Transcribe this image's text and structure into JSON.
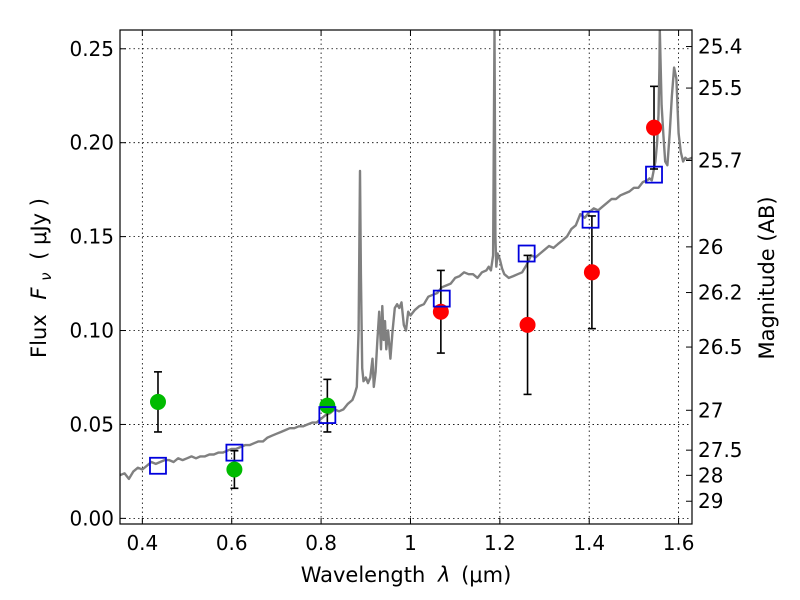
{
  "chart_data": {
    "type": "scatter",
    "xlabel_text": "Wavelength",
    "xlabel_symbol": "λ",
    "xlabel_unit": "(μm)",
    "ylabel_text": "Flux",
    "ylabel_symbol": "F",
    "ylabel_subscript": "ν",
    "ylabel_unit": "( μJy )",
    "y2label": "Magnitude (AB)",
    "xlim": [
      0.35,
      1.63
    ],
    "ylim": [
      -0.003,
      0.26
    ],
    "grid": true,
    "x_ticks": [
      {
        "value": 0.4,
        "label": "0.4"
      },
      {
        "value": 0.6,
        "label": "0.6"
      },
      {
        "value": 0.8,
        "label": "0.8"
      },
      {
        "value": 1.0,
        "label": "1"
      },
      {
        "value": 1.2,
        "label": "1.2"
      },
      {
        "value": 1.4,
        "label": "1.4"
      },
      {
        "value": 1.6,
        "label": "1.6"
      }
    ],
    "y_ticks": [
      {
        "value": 0.0,
        "label": "0.00"
      },
      {
        "value": 0.05,
        "label": "0.05"
      },
      {
        "value": 0.1,
        "label": "0.10"
      },
      {
        "value": 0.15,
        "label": "0.15"
      },
      {
        "value": 0.2,
        "label": "0.20"
      },
      {
        "value": 0.25,
        "label": "0.25"
      }
    ],
    "mag_ticks": [
      {
        "label": "25.4",
        "mag": 25.4
      },
      {
        "label": "25.5",
        "mag": 25.5
      },
      {
        "label": "25.7",
        "mag": 25.7
      },
      {
        "label": "26",
        "mag": 26.0
      },
      {
        "label": "26.2",
        "mag": 26.2
      },
      {
        "label": "26.5",
        "mag": 26.5
      },
      {
        "label": "27",
        "mag": 27.0
      },
      {
        "label": "27.5",
        "mag": 27.5
      },
      {
        "label": "28",
        "mag": 28.0
      },
      {
        "label": "29",
        "mag": 29.0
      }
    ],
    "series": [
      {
        "name": "model spectrum",
        "kind": "line",
        "color": "#808080",
        "points": [
          [
            0.35,
            0.023
          ],
          [
            0.36,
            0.024
          ],
          [
            0.37,
            0.021
          ],
          [
            0.38,
            0.025
          ],
          [
            0.39,
            0.027
          ],
          [
            0.4,
            0.026
          ],
          [
            0.41,
            0.028
          ],
          [
            0.42,
            0.03
          ],
          [
            0.43,
            0.029
          ],
          [
            0.44,
            0.03
          ],
          [
            0.45,
            0.031
          ],
          [
            0.46,
            0.031
          ],
          [
            0.47,
            0.03
          ],
          [
            0.48,
            0.032
          ],
          [
            0.49,
            0.031
          ],
          [
            0.5,
            0.032
          ],
          [
            0.51,
            0.033
          ],
          [
            0.52,
            0.032
          ],
          [
            0.53,
            0.033
          ],
          [
            0.54,
            0.033
          ],
          [
            0.55,
            0.034
          ],
          [
            0.56,
            0.034
          ],
          [
            0.57,
            0.035
          ],
          [
            0.58,
            0.035
          ],
          [
            0.59,
            0.036
          ],
          [
            0.6,
            0.037
          ],
          [
            0.61,
            0.037
          ],
          [
            0.62,
            0.038
          ],
          [
            0.63,
            0.039
          ],
          [
            0.64,
            0.039
          ],
          [
            0.65,
            0.04
          ],
          [
            0.66,
            0.041
          ],
          [
            0.67,
            0.041
          ],
          [
            0.68,
            0.043
          ],
          [
            0.69,
            0.044
          ],
          [
            0.7,
            0.045
          ],
          [
            0.71,
            0.046
          ],
          [
            0.72,
            0.047
          ],
          [
            0.73,
            0.048
          ],
          [
            0.74,
            0.048
          ],
          [
            0.75,
            0.049
          ],
          [
            0.76,
            0.049
          ],
          [
            0.77,
            0.05
          ],
          [
            0.78,
            0.051
          ],
          [
            0.79,
            0.051
          ],
          [
            0.8,
            0.053
          ],
          [
            0.81,
            0.055
          ],
          [
            0.82,
            0.056
          ],
          [
            0.83,
            0.058
          ],
          [
            0.84,
            0.057
          ],
          [
            0.85,
            0.058
          ],
          [
            0.86,
            0.061
          ],
          [
            0.87,
            0.063
          ],
          [
            0.875,
            0.066
          ],
          [
            0.88,
            0.07
          ],
          [
            0.884,
            0.1
          ],
          [
            0.887,
            0.185
          ],
          [
            0.889,
            0.13
          ],
          [
            0.892,
            0.08
          ],
          [
            0.895,
            0.073
          ],
          [
            0.9,
            0.075
          ],
          [
            0.905,
            0.072
          ],
          [
            0.91,
            0.075
          ],
          [
            0.915,
            0.085
          ],
          [
            0.918,
            0.07
          ],
          [
            0.922,
            0.078
          ],
          [
            0.926,
            0.095
          ],
          [
            0.93,
            0.11
          ],
          [
            0.934,
            0.09
          ],
          [
            0.937,
            0.113
          ],
          [
            0.94,
            0.095
          ],
          [
            0.943,
            0.105
          ],
          [
            0.946,
            0.09
          ],
          [
            0.95,
            0.1
          ],
          [
            0.955,
            0.085
          ],
          [
            0.96,
            0.1
          ],
          [
            0.965,
            0.112
          ],
          [
            0.97,
            0.114
          ],
          [
            0.975,
            0.112
          ],
          [
            0.98,
            0.115
          ],
          [
            0.985,
            0.103
          ],
          [
            0.99,
            0.1
          ],
          [
            0.995,
            0.11
          ],
          [
            1.0,
            0.108
          ],
          [
            1.01,
            0.111
          ],
          [
            1.02,
            0.113
          ],
          [
            1.03,
            0.114
          ],
          [
            1.04,
            0.118
          ],
          [
            1.05,
            0.119
          ],
          [
            1.06,
            0.12
          ],
          [
            1.07,
            0.123
          ],
          [
            1.08,
            0.124
          ],
          [
            1.09,
            0.125
          ],
          [
            1.1,
            0.128
          ],
          [
            1.11,
            0.129
          ],
          [
            1.12,
            0.131
          ],
          [
            1.13,
            0.13
          ],
          [
            1.14,
            0.13
          ],
          [
            1.15,
            0.128
          ],
          [
            1.16,
            0.131
          ],
          [
            1.17,
            0.132
          ],
          [
            1.175,
            0.134
          ],
          [
            1.18,
            0.132
          ],
          [
            1.185,
            0.14
          ],
          [
            1.188,
            0.26
          ],
          [
            1.19,
            0.15
          ],
          [
            1.192,
            0.134
          ],
          [
            1.195,
            0.141
          ],
          [
            1.2,
            0.138
          ],
          [
            1.205,
            0.133
          ],
          [
            1.21,
            0.13
          ],
          [
            1.22,
            0.128
          ],
          [
            1.23,
            0.129
          ],
          [
            1.24,
            0.13
          ],
          [
            1.25,
            0.131
          ],
          [
            1.26,
            0.135
          ],
          [
            1.27,
            0.14
          ],
          [
            1.28,
            0.139
          ],
          [
            1.29,
            0.141
          ],
          [
            1.3,
            0.143
          ],
          [
            1.31,
            0.145
          ],
          [
            1.32,
            0.144
          ],
          [
            1.33,
            0.146
          ],
          [
            1.34,
            0.148
          ],
          [
            1.35,
            0.15
          ],
          [
            1.36,
            0.154
          ],
          [
            1.37,
            0.156
          ],
          [
            1.38,
            0.162
          ],
          [
            1.39,
            0.16
          ],
          [
            1.4,
            0.163
          ],
          [
            1.41,
            0.165
          ],
          [
            1.42,
            0.164
          ],
          [
            1.43,
            0.166
          ],
          [
            1.44,
            0.168
          ],
          [
            1.45,
            0.17
          ],
          [
            1.46,
            0.17
          ],
          [
            1.47,
            0.172
          ],
          [
            1.48,
            0.173
          ],
          [
            1.49,
            0.174
          ],
          [
            1.5,
            0.176
          ],
          [
            1.51,
            0.176
          ],
          [
            1.52,
            0.179
          ],
          [
            1.53,
            0.18
          ],
          [
            1.535,
            0.181
          ],
          [
            1.54,
            0.18
          ],
          [
            1.548,
            0.19
          ],
          [
            1.552,
            0.2
          ],
          [
            1.555,
            0.215
          ],
          [
            1.557,
            0.24
          ],
          [
            1.558,
            0.26
          ],
          [
            1.562,
            0.22
          ],
          [
            1.566,
            0.204
          ],
          [
            1.57,
            0.19
          ],
          [
            1.575,
            0.188
          ],
          [
            1.58,
            0.205
          ],
          [
            1.585,
            0.225
          ],
          [
            1.59,
            0.24
          ],
          [
            1.595,
            0.234
          ],
          [
            1.6,
            0.205
          ],
          [
            1.605,
            0.195
          ],
          [
            1.61,
            0.19
          ],
          [
            1.615,
            0.192
          ],
          [
            1.62,
            0.191
          ],
          [
            1.63,
            0.192
          ]
        ]
      },
      {
        "name": "green points",
        "kind": "points_with_errors",
        "color": "#00bb00",
        "points": [
          {
            "x": 0.435,
            "y": 0.062,
            "err_lo": 0.016,
            "err_hi": 0.016
          },
          {
            "x": 0.606,
            "y": 0.026,
            "err_lo": 0.01,
            "err_hi": 0.01
          },
          {
            "x": 0.814,
            "y": 0.06,
            "err_lo": 0.014,
            "err_hi": 0.014
          }
        ]
      },
      {
        "name": "red points",
        "kind": "points_with_errors",
        "color": "#ff0000",
        "points": [
          {
            "x": 1.068,
            "y": 0.11,
            "err_lo": 0.022,
            "err_hi": 0.022
          },
          {
            "x": 1.262,
            "y": 0.103,
            "err_lo": 0.037,
            "err_hi": 0.037
          },
          {
            "x": 1.406,
            "y": 0.131,
            "err_lo": 0.03,
            "err_hi": 0.03
          },
          {
            "x": 1.545,
            "y": 0.208,
            "err_lo": 0.022,
            "err_hi": 0.022
          }
        ]
      },
      {
        "name": "model photometry",
        "kind": "open_squares",
        "color": "#0000dd",
        "points": [
          {
            "x": 0.435,
            "y": 0.028
          },
          {
            "x": 0.606,
            "y": 0.035
          },
          {
            "x": 0.814,
            "y": 0.055
          },
          {
            "x": 1.07,
            "y": 0.117
          },
          {
            "x": 1.26,
            "y": 0.141
          },
          {
            "x": 1.403,
            "y": 0.159
          },
          {
            "x": 1.545,
            "y": 0.183
          }
        ]
      }
    ]
  }
}
